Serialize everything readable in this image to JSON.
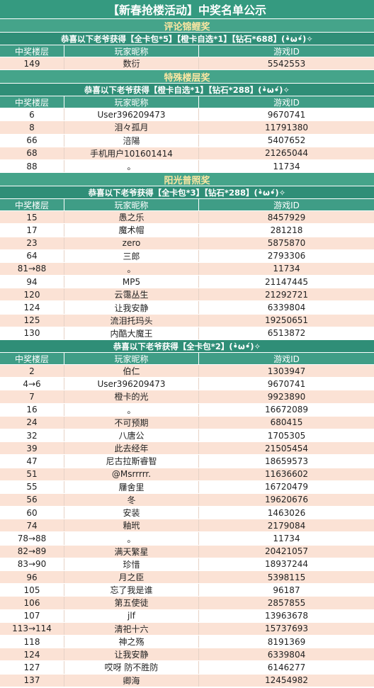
{
  "title": "【新春抢楼活动】中奖名单公示",
  "sections": [
    {
      "name": "评论锦鲤奖",
      "groups": [
        {
          "subtitle": "恭喜以下老爷获得【全卡包*5】【橙卡自选*1】【钻石*688】(•̀ω•́)✧",
          "columns": [
            "中奖楼层",
            "玩家昵称",
            "游戏ID"
          ],
          "rows": [
            [
              "149",
              "数衍",
              "5542553"
            ]
          ]
        }
      ]
    },
    {
      "name": "特殊楼层奖",
      "groups": [
        {
          "subtitle": "恭喜以下老爷获得【橙卡自选*1】【钻石*288】(•̀ω•́)✧",
          "columns": [
            "中奖楼层",
            "玩家昵称",
            "游戏ID"
          ],
          "rows": [
            [
              "6",
              "User396209473",
              "9670741"
            ],
            [
              "8",
              "泪々孤月",
              "11791380"
            ],
            [
              "66",
              "涪陽",
              "5407652"
            ],
            [
              "68",
              "手机用户101601414",
              "21265044"
            ],
            [
              "88",
              "。",
              "11734"
            ]
          ]
        }
      ]
    },
    {
      "name": "阳光普照奖",
      "groups": [
        {
          "subtitle": "恭喜以下老爷获得【全卡包*3】【钻石*288】(•̀ω•́)✧",
          "columns": [
            "中奖楼层",
            "玩家昵称",
            "游戏ID"
          ],
          "rows": [
            [
              "15",
              "愚之乐",
              "8457929"
            ],
            [
              "17",
              "魔术帽",
              "281218"
            ],
            [
              "23",
              "zero",
              "5875870"
            ],
            [
              "64",
              "三郎",
              "2793306"
            ],
            [
              "81→88",
              "。",
              "11734"
            ],
            [
              "94",
              "MP5",
              "21147445"
            ],
            [
              "120",
              "云霭丛生",
              "21292721"
            ],
            [
              "124",
              "让我安静",
              "6339804"
            ],
            [
              "125",
              "流泪托玛头",
              "19250651"
            ],
            [
              "130",
              "内酷大魔王",
              "6513872"
            ]
          ]
        },
        {
          "subtitle": "恭喜以下老爷获得【全卡包*2】(•̀ω•́)✧",
          "columns": [
            "中奖楼层",
            "玩家昵称",
            "游戏ID"
          ],
          "rows": [
            [
              "2",
              "伯仁",
              "1303947"
            ],
            [
              "4→6",
              "User396209473",
              "9670741"
            ],
            [
              "7",
              "橙卡的光",
              "9923890"
            ],
            [
              "16",
              "。",
              "16672089"
            ],
            [
              "24",
              "不可预期",
              "680415"
            ],
            [
              "32",
              "八唐公",
              "1705305"
            ],
            [
              "39",
              "此去经年",
              "21505454"
            ],
            [
              "47",
              "尼古拉斯睿智",
              "18659573"
            ],
            [
              "51",
              "@Msrrrrr.",
              "11636602"
            ],
            [
              "55",
              "屨舍里",
              "16720479"
            ],
            [
              "56",
              "冬",
              "19620676"
            ],
            [
              "60",
              "安装",
              "1463026"
            ],
            [
              "74",
              "釉玳",
              "2179084"
            ],
            [
              "78→88",
              "。",
              "11734"
            ],
            [
              "82→89",
              "满天繁星",
              "20421057"
            ],
            [
              "83→90",
              "珍惜",
              "18937244"
            ],
            [
              "96",
              "月之臣",
              "5398115"
            ],
            [
              "105",
              "忘了我是谁",
              "96187"
            ],
            [
              "106",
              "第五使徒",
              "2857855"
            ],
            [
              "107",
              "jlf",
              "13963678"
            ],
            [
              "113→114",
              "清祀十六",
              "15737693"
            ],
            [
              "118",
              "神之殇",
              "8191369"
            ],
            [
              "124",
              "让我安静",
              "6339804"
            ],
            [
              "127",
              "哎呀 防不胜防",
              "6146277"
            ],
            [
              "137",
              "卿海",
              "12454982"
            ]
          ]
        }
      ]
    }
  ]
}
